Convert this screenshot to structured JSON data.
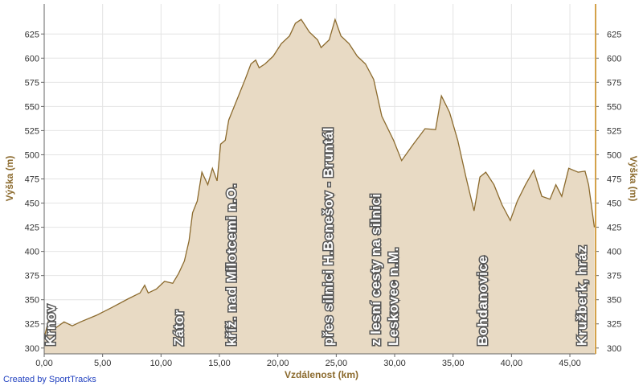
{
  "chart_data": {
    "type": "area",
    "x_label": "Vzdálenost (km)",
    "y_label": "Výška (m)",
    "credit": "Created by SportTracks",
    "x": [
      0,
      0.34,
      0.55,
      1.0,
      1.7,
      2.4,
      3.1,
      4.5,
      5.8,
      7.2,
      8.2,
      8.6,
      8.9,
      9.6,
      10.3,
      11.0,
      11.5,
      12.0,
      12.4,
      12.7,
      13.1,
      13.5,
      14.0,
      14.4,
      14.8,
      15.1,
      15.5,
      15.8,
      16.5,
      17.2,
      17.7,
      18.1,
      18.4,
      18.9,
      19.6,
      20.3,
      21.0,
      21.5,
      22.0,
      22.7,
      23.4,
      23.7,
      24.4,
      24.9,
      25.4,
      26.1,
      26.8,
      27.5,
      28.2,
      28.9,
      29.9,
      30.6,
      31.6,
      32.6,
      33.5,
      34.0,
      34.7,
      35.4,
      36.1,
      36.8,
      37.3,
      37.8,
      38.5,
      39.2,
      39.9,
      40.5,
      41.2,
      41.9,
      42.6,
      43.3,
      43.8,
      44.3,
      44.9,
      45.7,
      46.3,
      46.6,
      47.1
    ],
    "values": [
      311,
      327,
      319,
      321,
      327,
      323,
      327,
      334,
      342,
      351,
      357,
      365,
      357,
      361,
      369,
      367,
      377,
      390,
      411,
      440,
      452,
      482,
      469,
      486,
      473,
      511,
      515,
      536,
      557,
      578,
      594,
      598,
      590,
      594,
      602,
      615,
      623,
      636,
      640,
      627,
      619,
      611,
      619,
      640,
      623,
      615,
      602,
      594,
      578,
      540,
      515,
      494,
      511,
      527,
      526,
      561,
      544,
      515,
      477,
      442,
      477,
      482,
      469,
      448,
      432,
      452,
      469,
      484,
      457,
      454,
      469,
      457,
      486,
      482,
      483,
      469,
      425
    ],
    "color": "#8b6a2d",
    "fill": "#e8dac4",
    "xlim": [
      0,
      47.2
    ],
    "ylim": [
      294,
      656
    ],
    "xticks": [
      {
        "value": 0,
        "label": "0,00"
      },
      {
        "value": 5,
        "label": "5,00"
      },
      {
        "value": 10,
        "label": "10,00"
      },
      {
        "value": 15,
        "label": "15,00"
      },
      {
        "value": 20,
        "label": "20,00"
      },
      {
        "value": 25,
        "label": "25,00"
      },
      {
        "value": 30,
        "label": "30,00"
      },
      {
        "value": 35,
        "label": "35,00"
      },
      {
        "value": 40,
        "label": "40,00"
      },
      {
        "value": 45,
        "label": "45,00"
      }
    ],
    "yticks": [
      300,
      325,
      350,
      375,
      400,
      425,
      450,
      475,
      500,
      525,
      550,
      575,
      600,
      625
    ],
    "grid": true,
    "annotations": [
      {
        "x": 0.5,
        "lines": [
          "Krnov"
        ]
      },
      {
        "x": 11.5,
        "lines": [
          "Zátor"
        ]
      },
      {
        "x": 16.0,
        "lines": [
          "kříž. nad Milotcemi n.O."
        ]
      },
      {
        "x": 24.3,
        "lines": [
          "přes silnici H.Benešov - Bruntál"
        ]
      },
      {
        "x": 29.1,
        "lines": [
          "z lesní cesty na silnici",
          "Leskovec n.M."
        ]
      },
      {
        "x": 37.5,
        "lines": [
          "Bohdanovice"
        ]
      },
      {
        "x": 46.0,
        "lines": [
          "Kružberk, hráz"
        ]
      }
    ]
  }
}
